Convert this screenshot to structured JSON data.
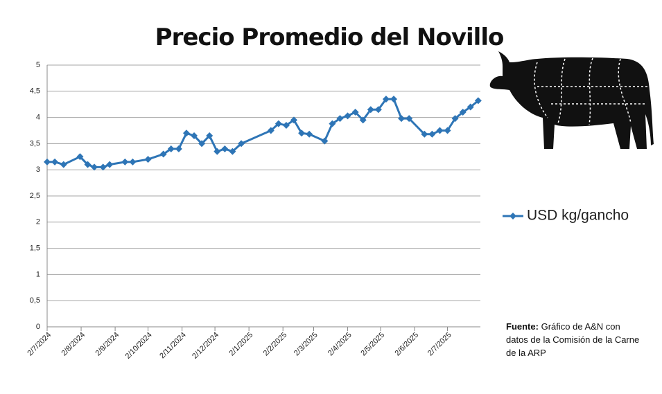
{
  "chart_data": {
    "type": "line",
    "title": "Precio Promedio del Novillo",
    "x": [
      "2024-07-02",
      "2024-07-09",
      "2024-07-17",
      "2024-08-01",
      "2024-08-08",
      "2024-08-14",
      "2024-08-22",
      "2024-08-28",
      "2024-09-11",
      "2024-09-18",
      "2024-10-02",
      "2024-10-16",
      "2024-10-23",
      "2024-10-30",
      "2024-11-06",
      "2024-11-13",
      "2024-11-20",
      "2024-11-27",
      "2024-12-04",
      "2024-12-11",
      "2024-12-18",
      "2024-12-26",
      "2025-01-22",
      "2025-01-29",
      "2025-02-05",
      "2025-02-12",
      "2025-02-19",
      "2025-02-26",
      "2025-03-12",
      "2025-03-19",
      "2025-03-26",
      "2025-04-02",
      "2025-04-09",
      "2025-04-16",
      "2025-04-23",
      "2025-04-30",
      "2025-05-07",
      "2025-05-14",
      "2025-05-21",
      "2025-05-28",
      "2025-06-11",
      "2025-06-18",
      "2025-06-25",
      "2025-07-02",
      "2025-07-09",
      "2025-07-16",
      "2025-07-23",
      "2025-07-30"
    ],
    "series": [
      {
        "name": "USD kg/gancho",
        "color": "#2e75b6",
        "values": [
          3.15,
          3.15,
          3.1,
          3.25,
          3.1,
          3.05,
          3.05,
          3.1,
          3.15,
          3.15,
          3.2,
          3.3,
          3.4,
          3.4,
          3.7,
          3.65,
          3.5,
          3.65,
          3.35,
          3.4,
          3.35,
          3.5,
          3.75,
          3.88,
          3.85,
          3.95,
          3.7,
          3.68,
          3.55,
          3.88,
          3.98,
          4.03,
          4.1,
          3.95,
          4.15,
          4.15,
          4.35,
          4.35,
          3.98,
          3.98,
          3.68,
          3.68,
          3.75,
          3.75,
          3.98,
          4.1,
          4.2,
          4.32
        ]
      }
    ],
    "xlim": [
      "2024-07-02",
      "2025-08-01"
    ],
    "xticks": [
      {
        "value": "2024-07-02",
        "label": "2/7/2024"
      },
      {
        "value": "2024-08-02",
        "label": "2/8/2024"
      },
      {
        "value": "2024-09-02",
        "label": "2/9/2024"
      },
      {
        "value": "2024-10-02",
        "label": "2/10/2024"
      },
      {
        "value": "2024-11-02",
        "label": "2/11/2024"
      },
      {
        "value": "2024-12-02",
        "label": "2/12/2024"
      },
      {
        "value": "2025-01-02",
        "label": "2/1/2025"
      },
      {
        "value": "2025-02-02",
        "label": "2/2/2025"
      },
      {
        "value": "2025-03-02",
        "label": "2/3/2025"
      },
      {
        "value": "2025-04-02",
        "label": "2/4/2025"
      },
      {
        "value": "2025-05-02",
        "label": "2/5/2025"
      },
      {
        "value": "2025-06-02",
        "label": "2/6/2025"
      },
      {
        "value": "2025-07-02",
        "label": "2/7/2025"
      }
    ],
    "ylim": [
      0,
      5
    ],
    "yticks": [
      0,
      {
        "value": 0.5,
        "label": "0,5"
      },
      1,
      {
        "value": 1.5,
        "label": "1,5"
      },
      2,
      {
        "value": 2.5,
        "label": "2,5"
      },
      3,
      {
        "value": 3.5,
        "label": "3,5"
      },
      4,
      {
        "value": 4.5,
        "label": "4,5"
      },
      5
    ],
    "grid": true,
    "legend": "right",
    "source": {
      "label": "Fuente:",
      "text": "Gráfico de A&N con datos de la Comisión de la Carne de la ARP"
    }
  }
}
